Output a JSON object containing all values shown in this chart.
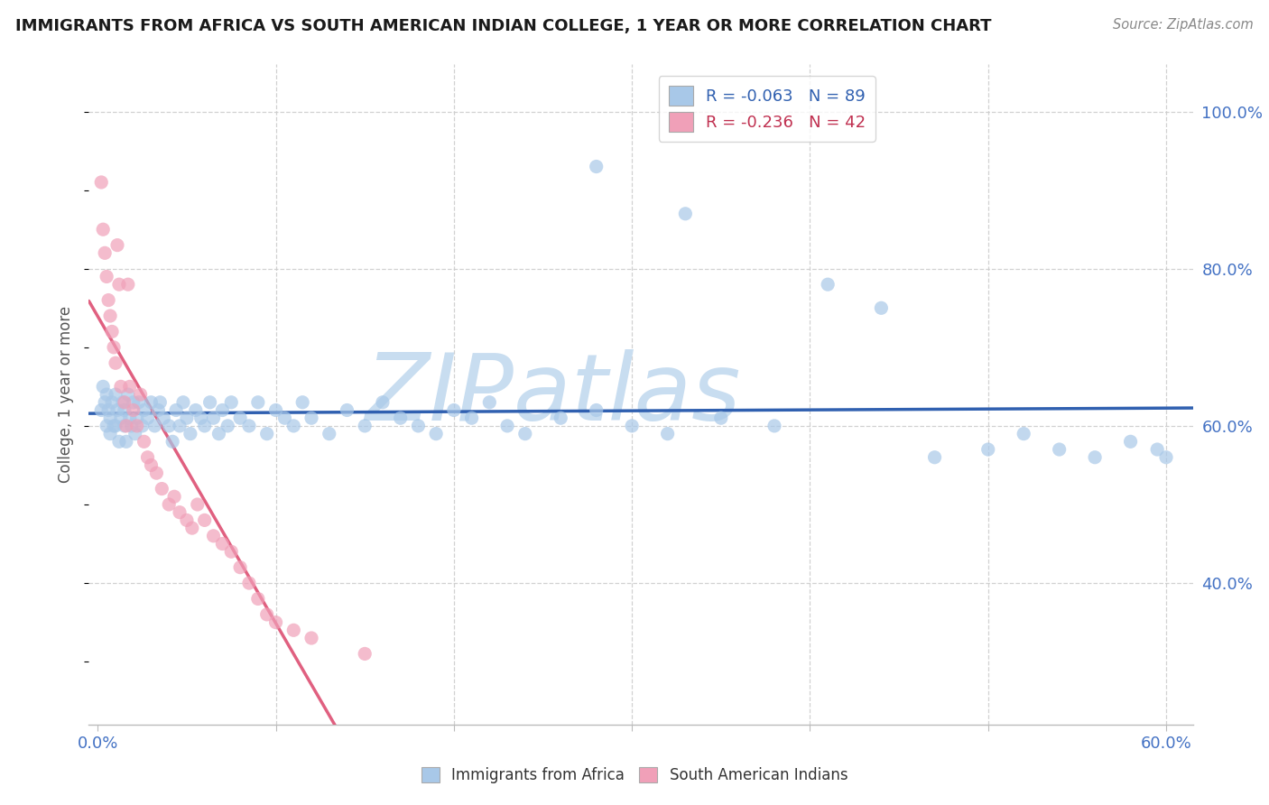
{
  "title": "IMMIGRANTS FROM AFRICA VS SOUTH AMERICAN INDIAN COLLEGE, 1 YEAR OR MORE CORRELATION CHART",
  "source": "Source: ZipAtlas.com",
  "ylabel": "College, 1 year or more",
  "xlim": [
    -0.005,
    0.615
  ],
  "ylim": [
    0.22,
    1.06
  ],
  "xtick_vals": [
    0.0,
    0.1,
    0.2,
    0.3,
    0.4,
    0.5,
    0.6
  ],
  "xticklabels": [
    "0.0%",
    "",
    "",
    "",
    "",
    "",
    "60.0%"
  ],
  "ytick_vals": [
    0.4,
    0.6,
    0.8,
    1.0
  ],
  "yticklabels": [
    "40.0%",
    "60.0%",
    "80.0%",
    "100.0%"
  ],
  "blue_R": -0.063,
  "blue_N": 89,
  "pink_R": -0.236,
  "pink_N": 42,
  "blue_color": "#A8C8E8",
  "pink_color": "#F0A0B8",
  "blue_line_color": "#3060B0",
  "pink_line_color": "#E06080",
  "watermark_text": "ZIPatlas",
  "watermark_color": "#C8DDF0",
  "grid_color": "#CCCCCC",
  "bg_color": "#FFFFFF",
  "title_color": "#1A1A1A",
  "axis_tick_color": "#4472C4",
  "ylabel_color": "#555555",
  "legend_blue_text": "R = -0.063   N = 89",
  "legend_pink_text": "R = -0.236   N = 42",
  "bottom_blue_label": "Immigrants from Africa",
  "bottom_pink_label": "South American Indians",
  "blue_x": [
    0.002,
    0.003,
    0.004,
    0.005,
    0.005,
    0.006,
    0.007,
    0.007,
    0.008,
    0.009,
    0.01,
    0.01,
    0.011,
    0.012,
    0.013,
    0.014,
    0.015,
    0.015,
    0.016,
    0.017,
    0.018,
    0.019,
    0.02,
    0.021,
    0.022,
    0.023,
    0.025,
    0.026,
    0.028,
    0.03,
    0.032,
    0.034,
    0.035,
    0.037,
    0.04,
    0.042,
    0.044,
    0.046,
    0.048,
    0.05,
    0.052,
    0.055,
    0.058,
    0.06,
    0.063,
    0.065,
    0.068,
    0.07,
    0.073,
    0.075,
    0.08,
    0.085,
    0.09,
    0.095,
    0.1,
    0.105,
    0.11,
    0.115,
    0.12,
    0.13,
    0.14,
    0.15,
    0.16,
    0.17,
    0.18,
    0.19,
    0.2,
    0.21,
    0.22,
    0.23,
    0.24,
    0.26,
    0.28,
    0.3,
    0.32,
    0.35,
    0.38,
    0.41,
    0.44,
    0.47,
    0.5,
    0.52,
    0.54,
    0.56,
    0.58,
    0.595,
    0.6,
    0.28,
    0.33
  ],
  "blue_y": [
    0.62,
    0.65,
    0.63,
    0.6,
    0.64,
    0.62,
    0.61,
    0.59,
    0.63,
    0.6,
    0.64,
    0.6,
    0.62,
    0.58,
    0.61,
    0.63,
    0.6,
    0.62,
    0.58,
    0.64,
    0.61,
    0.6,
    0.63,
    0.59,
    0.61,
    0.63,
    0.6,
    0.62,
    0.61,
    0.63,
    0.6,
    0.62,
    0.63,
    0.61,
    0.6,
    0.58,
    0.62,
    0.6,
    0.63,
    0.61,
    0.59,
    0.62,
    0.61,
    0.6,
    0.63,
    0.61,
    0.59,
    0.62,
    0.6,
    0.63,
    0.61,
    0.6,
    0.63,
    0.59,
    0.62,
    0.61,
    0.6,
    0.63,
    0.61,
    0.59,
    0.62,
    0.6,
    0.63,
    0.61,
    0.6,
    0.59,
    0.62,
    0.61,
    0.63,
    0.6,
    0.59,
    0.61,
    0.62,
    0.6,
    0.59,
    0.61,
    0.6,
    0.78,
    0.75,
    0.56,
    0.57,
    0.59,
    0.57,
    0.56,
    0.58,
    0.57,
    0.56,
    0.93,
    0.87
  ],
  "pink_x": [
    0.002,
    0.003,
    0.004,
    0.005,
    0.006,
    0.007,
    0.008,
    0.009,
    0.01,
    0.011,
    0.012,
    0.013,
    0.015,
    0.016,
    0.017,
    0.018,
    0.02,
    0.022,
    0.024,
    0.026,
    0.028,
    0.03,
    0.033,
    0.036,
    0.04,
    0.043,
    0.046,
    0.05,
    0.053,
    0.056,
    0.06,
    0.065,
    0.07,
    0.075,
    0.08,
    0.085,
    0.09,
    0.095,
    0.1,
    0.11,
    0.12,
    0.15
  ],
  "pink_y": [
    0.91,
    0.85,
    0.82,
    0.79,
    0.76,
    0.74,
    0.72,
    0.7,
    0.68,
    0.83,
    0.78,
    0.65,
    0.63,
    0.6,
    0.78,
    0.65,
    0.62,
    0.6,
    0.64,
    0.58,
    0.56,
    0.55,
    0.54,
    0.52,
    0.5,
    0.51,
    0.49,
    0.48,
    0.47,
    0.5,
    0.48,
    0.46,
    0.45,
    0.44,
    0.42,
    0.4,
    0.38,
    0.36,
    0.35,
    0.34,
    0.33,
    0.31
  ],
  "pink_line_x_solid_end": 0.16,
  "pink_line_x_dash_end": 0.615
}
